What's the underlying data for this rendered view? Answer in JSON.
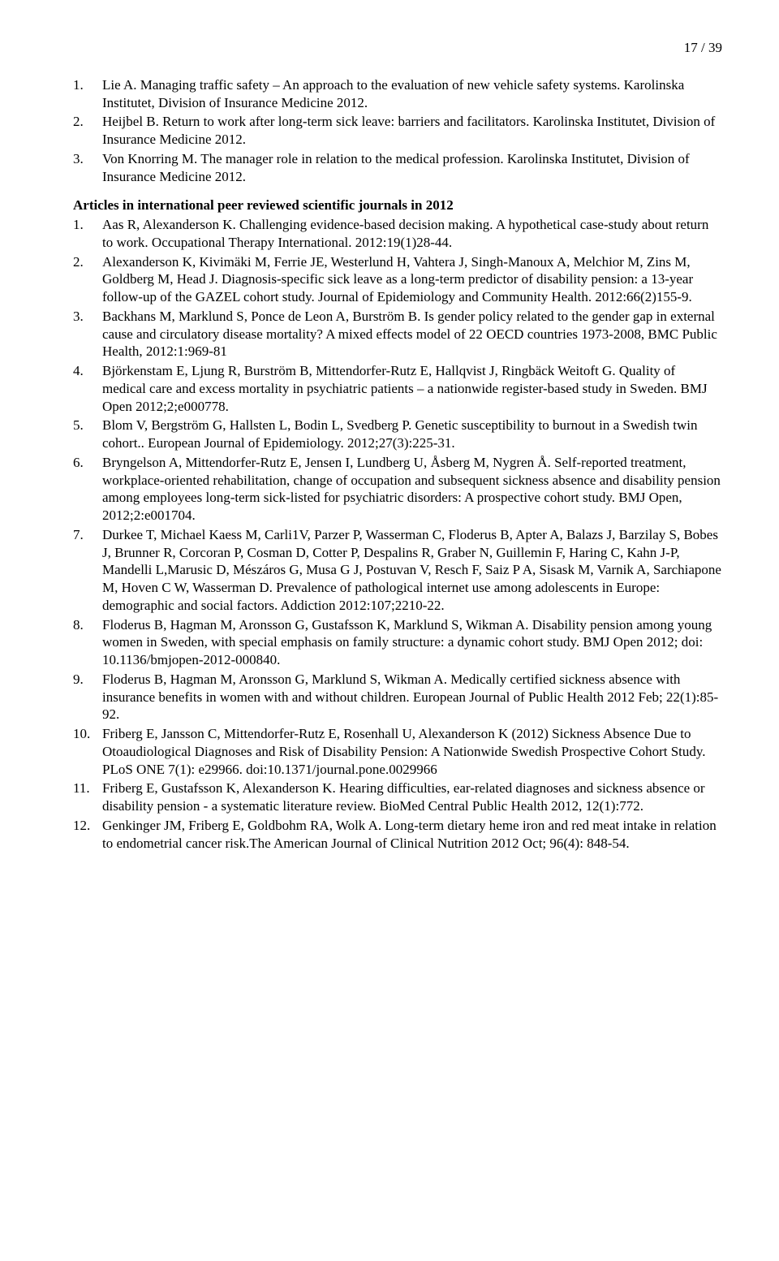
{
  "pageNumber": "17 / 39",
  "list1": [
    {
      "n": "1.",
      "t": "Lie A. Managing traffic safety – An approach to the evaluation of new vehicle safety systems. Karolinska Institutet, Division of Insurance Medicine 2012."
    },
    {
      "n": "2.",
      "t": "Heijbel B. Return to work after long-term sick leave: barriers and facilitators. Karolinska Institutet, Division of Insurance Medicine 2012."
    },
    {
      "n": "3.",
      "t": "Von Knorring M. The manager role in relation to the medical profession. Karolinska Institutet, Division of Insurance Medicine 2012."
    }
  ],
  "heading": "Articles in international peer reviewed scientific journals in 2012",
  "list2": [
    {
      "n": "1.",
      "t": "Aas R, Alexanderson K. Challenging evidence-based decision making. A hypothetical case-study about return to work. Occupational Therapy International. 2012:19(1)28-44."
    },
    {
      "n": "2.",
      "t": "Alexanderson K, Kivimäki M, Ferrie JE, Westerlund H, Vahtera J, Singh-Manoux A, Melchior M, Zins M, Goldberg M, Head J. Diagnosis-specific sick leave as a long-term predictor of disability pension: a 13-year follow-up of the GAZEL cohort study. Journal of Epidemiology and Community Health. 2012:66(2)155-9."
    },
    {
      "n": "3.",
      "t": "Backhans M, Marklund S, Ponce de Leon A, Burström B. Is gender policy related to the gender gap in external cause and circulatory disease mortality? A mixed effects model of 22 OECD countries 1973-2008, BMC Public Health, 2012:1:969-81"
    },
    {
      "n": "4.",
      "t": "Björkenstam E, Ljung R, Burström B, Mittendorfer-Rutz E, Hallqvist J, Ringbäck Weitoft G. Quality of medical care and excess mortality in psychiatric patients – a nationwide register-based study in Sweden. BMJ Open 2012;2;e000778."
    },
    {
      "n": "5.",
      "t": "Blom V, Bergström G, Hallsten L, Bodin L, Svedberg P. Genetic susceptibility to burnout in a Swedish twin cohort.. European Journal of Epidemiology. 2012;27(3):225-31."
    },
    {
      "n": "6.",
      "t": "Bryngelson A, Mittendorfer-Rutz E, Jensen I, Lundberg U, Åsberg M, Nygren Å. Self-reported treatment, workplace-oriented rehabilitation, change of occupation and subsequent sickness absence and disability pension among employees long-term sick-listed for psychiatric disorders: A prospective cohort study. BMJ Open, 2012;2:e001704."
    },
    {
      "n": "7.",
      "t": "Durkee T, Michael Kaess M, Carli1V, Parzer P, Wasserman C, Floderus B, Apter A, Balazs J, Barzilay S, Bobes J, Brunner R, Corcoran P, Cosman D, Cotter P, Despalins R, Graber N, Guillemin F, Haring C, Kahn J-P, Mandelli L,Marusic D, Mészáros G, Musa G J, Postuvan V, Resch F, Saiz P A, Sisask M, Varnik A, Sarchiapone M, Hoven C W, Wasserman D. Prevalence of pathological internet use among adolescents in Europe: demographic and social factors. Addiction 2012:107;2210-22."
    },
    {
      "n": "8.",
      "t": "Floderus B, Hagman M, Aronsson G, Gustafsson K, Marklund S, Wikman A. Disability pension among young women in Sweden, with special emphasis on family structure: a dynamic cohort study. BMJ Open 2012; doi: 10.1136/bmjopen-2012-000840."
    },
    {
      "n": "9.",
      "t": "Floderus B, Hagman M, Aronsson G, Marklund S, Wikman A. Medically certified sickness absence with insurance benefits in women with and without children. European Journal of Public Health 2012 Feb; 22(1):85-92."
    },
    {
      "n": "10.",
      "t": "Friberg E, Jansson C, Mittendorfer-Rutz E, Rosenhall U, Alexanderson K (2012) Sickness Absence Due to Otoaudiological Diagnoses and Risk of Disability Pension: A Nationwide Swedish Prospective Cohort Study. PLoS ONE 7(1): e29966. doi:10.1371/journal.pone.0029966"
    },
    {
      "n": "11.",
      "t": "Friberg E, Gustafsson K, Alexanderson K. Hearing difficulties, ear-related diagnoses and sickness absence or disability pension - a systematic literature review. BioMed Central Public Health 2012, 12(1):772."
    },
    {
      "n": "12.",
      "t": "Genkinger JM, Friberg E, Goldbohm RA, Wolk A. Long-term dietary heme iron and red meat intake in relation to endometrial cancer risk.The American Journal of Clinical Nutrition 2012 Oct; 96(4): 848-54."
    }
  ]
}
